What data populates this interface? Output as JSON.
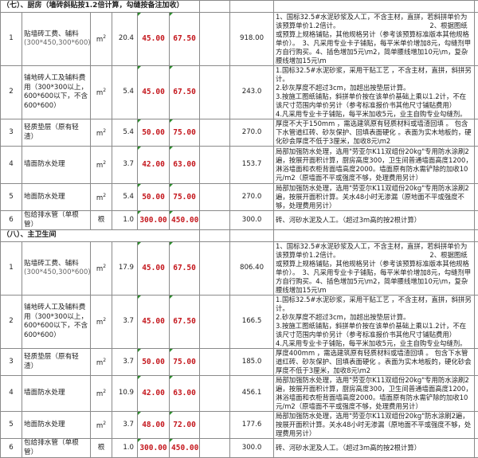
{
  "sections": [
    {
      "title": "（七）、厨房（墙砖斜贴按1.2倍计算，勾缝按备注加收）",
      "rows": [
        {
          "no": "1",
          "name": "贴墙砖工费、辅料",
          "spec": "(300*450,300*600)",
          "unit": "m",
          "unit_sup": "2",
          "qty": "20.4",
          "price1": "45.00",
          "price2": "67.50",
          "total": "918.00",
          "desc": "1、国标32.5#水泥砂浆及人工，不含主材，直拼，若斜拼单价为该预算单价1.2倍计。　　　　　　　　　　　　　　2、根据图纸或预算上规格铺贴，其他规格另计（参考该预算标准版本其他规格单价）。　3、凡采用专业卡子铺贴，每平米单价增加8元，勾缝剂甲方自行购买。4、插色增加5元\\m2，简单腰线增加10元\\m，复杂腰线增加15元\\m"
        },
        {
          "no": "2",
          "name": "铺地砖人工及辅料费用（300*300以上，600*600以下，不含600*600）",
          "spec": "",
          "unit": "m",
          "unit_sup": "2",
          "qty": "5.4",
          "price1": "45.00",
          "price2": "67.50",
          "total": "243.0",
          "desc": "1.国标32.5#水泥砂浆，采用干贴工艺 ，不含主材，直拼，斜拼另计。\n2.砂灰厚度不超过3cm，加超出按垫层计算。\n3.按施工图纸铺贴，斜拼单价按在该单价基础上乘以1.2计，不在该尺寸范围内单价另计（参考标准报价书其他尺寸铺贴费用）\n4.凡采用专业卡子铺贴，每平米加收5元，业主自购专业勾缝剂。"
        },
        {
          "no": "3",
          "name": "轻质垫层（原有轻渣）",
          "spec": "",
          "unit": "m",
          "unit_sup": "2",
          "qty": "5.4",
          "price1": "50.00",
          "price2": "75.00",
          "total": "270.0",
          "desc": "厚度不大于150mm ，需选建筑原有轻质材料或墙渣回填 。 包含下水管道红砖、砂灰保护、回填表面硬化 。表面为实木地板的，硬化砂会厚度不低于3厘米，加收8元\\m2"
        },
        {
          "no": "4",
          "name": "墙面防水处理",
          "spec": "",
          "unit": "m",
          "unit_sup": "2",
          "qty": "3.7",
          "price1": "42.00",
          "price2": "63.00",
          "total": "153.7",
          "desc": "局部加强防水处理，选用\"劳亚尔K11双组份20kg\"专用防水涂刷2遍，按展开面积计算，厨房高度300，卫生间普通墙面高度1200，淋浴墙面和衣柜背面墙高度2000。墙面原有防水需铲除的加收10元/m2（原墙面不平或强度不够，处理费用另计）"
        },
        {
          "no": "5",
          "name": "地面防水处理",
          "spec": "",
          "unit": "m",
          "unit_sup": "2",
          "qty": "5.4",
          "price1": "50.00",
          "price2": "75.00",
          "total": "270.0",
          "desc": "局部加强防水处理，选用\"劳亚尔K11双组份20kg\"专用防水涂刷2遍，按展开面积计算。关水48小时无渗漏（原地面不平或强度不够，处理费用另计）"
        },
        {
          "no": "6",
          "name": "包给排水管（单根管）",
          "spec": "",
          "unit": "根",
          "unit_sup": "",
          "qty": "1.0",
          "price1": "300.00",
          "price2": "450.00",
          "total": "300.0",
          "desc": "砖、河砂水泥及人工。（超过3m高的按2根计算）"
        }
      ]
    },
    {
      "title": "（八）、主卫生间",
      "rows": [
        {
          "no": "1",
          "name": "贴墙砖工费、辅料",
          "spec": "(300*450,300*600)",
          "unit": "m",
          "unit_sup": "2",
          "qty": "17.9",
          "price1": "45.00",
          "price2": "67.50",
          "total": "806.40",
          "desc": "1、国标32.5#水泥砂浆及人工，不含主材，直拼，若斜拼单价为该预算单价1.2倍计。　　　　　　　　　　　　　　2、根据图纸或预算上规格铺贴，其他规格另计（参考该预算标准版本其他规格单价）。　3、凡采用专业卡子铺贴，每平米单价增加8元，勾缝剂甲方自行购买。4、插色增加5元\\m2，简单腰线增加10元\\m，复杂腰线增加15元\\m"
        },
        {
          "no": "2",
          "name": "铺地砖人工及辅料费用（300*300以上，600*600以下，不含600*600）",
          "spec": "",
          "unit": "m",
          "unit_sup": "2",
          "qty": "3.7",
          "price1": "45.00",
          "price2": "67.50",
          "total": "166.5",
          "desc": "1.国标32.5#水泥砂浆，采用干贴工艺 ，不含主材，直拼，斜拼另计。\n2.砂灰厚度不超过3cm，加超出按垫层计算。\n3.按施工图纸铺贴，斜拼单价按在该单价基础上乘以1.2计，不在该尺寸范围内单价另计（参考标准报价书其他尺寸铺贴费用）\n4.凡采用专业卡子铺贴，每平米加收5元，业主自购专业勾缝剂。"
        },
        {
          "no": "3",
          "name": "轻质垫层（原有轻渣）",
          "spec": "",
          "unit": "m",
          "unit_sup": "2",
          "qty": "3.7",
          "price1": "50.00",
          "price2": "75.00",
          "total": "185.0",
          "desc": "厚度400mm ，需选建筑原有轻质材料或墙渣回填 。 包含下水管道红砖、砂灰保护、回填表面硬化 。表面为实木地板的，硬化砂会厚度不低于3厘米，加收8元\\m2"
        },
        {
          "no": "4",
          "name": "墙面防水处理",
          "spec": "",
          "unit": "m",
          "unit_sup": "2",
          "qty": "10.9",
          "price1": "42.00",
          "price2": "63.00",
          "total": "456.1",
          "desc": "局部加强防水处理，选用\"劳亚尔K11双组份20kg\"专用防水涂刷2遍，按展开面积计算，厨房高度300，卫生间普通墙面高度1200，淋浴墙面和衣柜背面墙高度2000。墙面原有防水需铲除的加收10元/m2（原墙面不平或强度不够，处理费用另计）"
        },
        {
          "no": "5",
          "name": "地面防水处理",
          "spec": "",
          "unit": "m",
          "unit_sup": "2",
          "qty": "3.7",
          "price1": "48.00",
          "price2": "72.00",
          "total": "177.6",
          "desc": "局部加强防水处理，选用\"劳亚尔K11双组份20kg\"防水涂刷2遍，按展开面积计算。关水48小时无渗漏（原地面不平或强度不够，处理费用另计）"
        },
        {
          "no": "6",
          "name": "包给排水管（单根管）",
          "spec": "",
          "unit": "根",
          "unit_sup": "",
          "qty": "1.0",
          "price1": "300.00",
          "price2": "450.00",
          "total": "300.0",
          "desc": "砖、河砂水泥及人工。（超过3m高的按2根计算）"
        }
      ]
    }
  ],
  "colors": {
    "price": "#c4161c",
    "border": "#8a8a8a"
  }
}
